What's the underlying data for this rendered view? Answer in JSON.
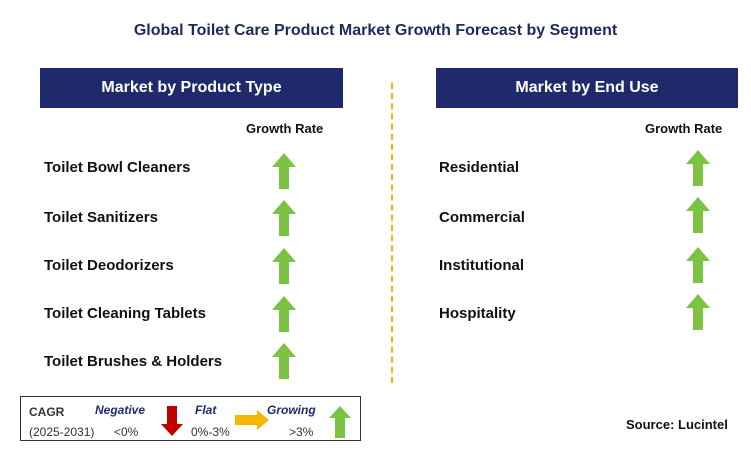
{
  "title": "Global Toilet Care Product Market Growth Forecast by Segment",
  "left_panel": {
    "header": "Market by Product Type",
    "growth_label": "Growth Rate",
    "items": [
      {
        "label": "Toilet Bowl Cleaners",
        "trend": "growing"
      },
      {
        "label": "Toilet Sanitizers",
        "trend": "growing"
      },
      {
        "label": "Toilet Deodorizers",
        "trend": "growing"
      },
      {
        "label": "Toilet Cleaning Tablets",
        "trend": "growing"
      },
      {
        "label": "Toilet Brushes & Holders",
        "trend": "growing"
      }
    ]
  },
  "right_panel": {
    "header": "Market by End Use",
    "growth_label": "Growth Rate",
    "items": [
      {
        "label": "Residential",
        "trend": "growing"
      },
      {
        "label": "Commercial",
        "trend": "growing"
      },
      {
        "label": "Institutional",
        "trend": "growing"
      },
      {
        "label": "Hospitality",
        "trend": "growing"
      }
    ]
  },
  "legend": {
    "cagr": "CAGR",
    "period": "(2025-2031)",
    "negative_label": "Negative",
    "negative_value": "<0%",
    "flat_label": "Flat",
    "flat_value": "0%-3%",
    "growing_label": "Growing",
    "growing_value": ">3%"
  },
  "source": "Source: Lucintel",
  "colors": {
    "header_bg": "#1f2a6b",
    "arrow_up": "#7cc243",
    "arrow_down": "#c00000",
    "arrow_flat": "#f5b800",
    "divider": "#f2b400"
  },
  "icons": {
    "growing": "up-arrow-icon",
    "negative": "down-arrow-icon",
    "flat": "right-arrow-icon"
  }
}
